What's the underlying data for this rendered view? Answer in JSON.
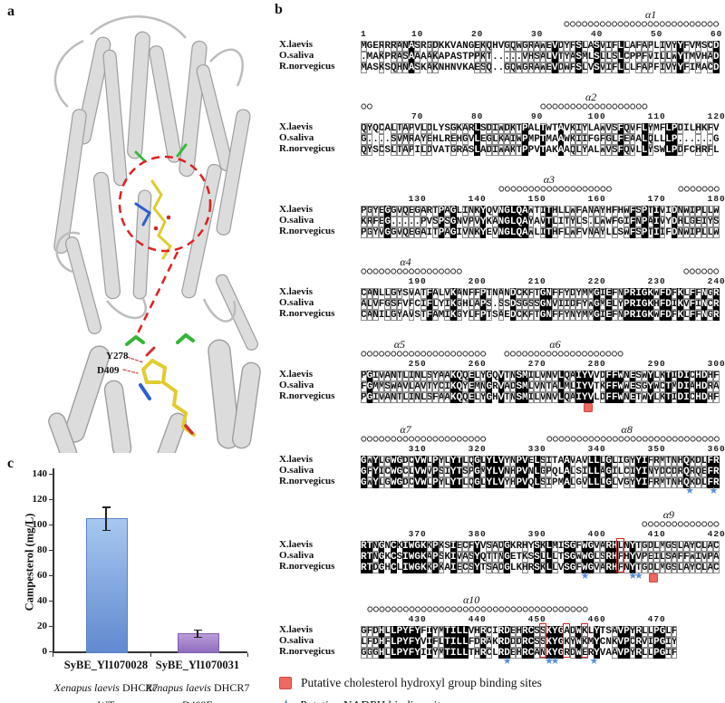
{
  "figure": {
    "panel_a_label": "a",
    "panel_b_label": "b",
    "panel_c_label": "c"
  },
  "panel_a": {
    "labels": [
      "Y278",
      "D409"
    ],
    "colors": {
      "ribbon": "#dcdcdc",
      "ribbon_edge": "#9e9e9e",
      "ligand": "#e0cc2e",
      "residue": "#38b838",
      "stick_blue": "#2b5fd0",
      "stick_red": "#cc2a2a",
      "dashed": "#e02020"
    }
  },
  "alignment": {
    "species": [
      "X.laevis",
      "O.saliva",
      "R.norvegicus"
    ],
    "colors": {
      "star": "#5b8ed8",
      "red_square": "#ee6a60",
      "red_square_border": "#cf4a42",
      "red_box": "#dd2020"
    },
    "blocks": [
      {
        "start": 1,
        "helices": [
          {
            "label": "α1",
            "from": 35,
            "to": 60,
            "at": 49
          }
        ],
        "rows": [
          "MGERRRANASRGDKKVANGEKQHVGQWGRAWEVDYFSLASVIFLLAFAPLIVYYFVMSCD",
          ".MAKPRASAAAAKAPASTPPKT.....VHSALVTYASMLSLLSLCPPFVILLWYTMVHAD",
          "MASKSQHNASKAKNHNVKAESQ..GQWGRAWEVDWFSLVSVIFLLLFAPFIVYYFIMACD"
        ],
        "markers": [],
        "red_boxes": []
      },
      {
        "start": 61,
        "helices": [
          {
            "from": 61,
            "to": 61.9
          },
          {
            "label": "α2",
            "from": 91,
            "to": 108,
            "at": 99
          }
        ],
        "rows": [
          "QYQCALTAPVLDLYSGKARLSDIWDKTPALTWTAVKIYLAWVSFQVFLYMFLPDILHKFV",
          "G....SVMRAYEHLREHGVLEGLKAIWPMPTMAAWKIIFGFGLFEAALQLLLP......G",
          "QYSCSLTAPILDVATGRASLADIWAKTPPVTAKAAQLYALWVSFQVLLYSWLPDFCHRFL"
        ],
        "markers": [],
        "red_boxes": []
      },
      {
        "start": 121,
        "helices": [
          {
            "label": "α3",
            "from": 144,
            "to": 162,
            "at": 152
          },
          {
            "from": 174,
            "to": 180
          }
        ],
        "rows": [
          "PGYEGGVQEGARTPAGLINKYQVNGLQAWTITHLLWFANAYHFHWFSPTIVIDNWIPLLW",
          "KRFEG.....PVSPSGNVPVYKANGLQAYAVTLITYLS.LWWFGIFNPAIVYDHLGEIYS",
          "PGYVGGVQEGAITPAGIVNKYEVNGLQAWLITHFLWFVNAYLLSWFSPTIIFDNWIPLLW"
        ],
        "markers": [],
        "red_boxes": []
      },
      {
        "start": 181,
        "helices": [
          {
            "label": "α4",
            "from": 181,
            "to": 197,
            "at": 188
          },
          {
            "from": 235,
            "to": 240
          }
        ],
        "rows": [
          "CANLLGYSVATFALVKANFFPTNANDCKFTGNFFYDYMMGIEFNPRIGKWFDFKLFFNGR",
          "ALVFGSFVFCIFLYIKGHLAPS.SSDSGSSGNVIIDFYWGMELYPRIGKHFDIKVFINCR",
          "CANILGYAVSTFAMIKGYLFPTSAEDCKFTGNFFYNYMMGIEFNPRIGKWFDFKLFFNGR"
        ],
        "markers": [],
        "red_boxes": []
      },
      {
        "start": 241,
        "helices": [
          {
            "label": "α5",
            "from": 241,
            "to": 261,
            "at": 247
          },
          {
            "label": "α6",
            "from": 265,
            "to": 284,
            "at": 273
          }
        ],
        "rows": [
          "PGIVANTLINLSYAAKQQELYGQVTNSMILVNVLQAIYVVDFFWNESWYLKTIDICHDHF",
          "FGMMSWAVLAVTYCIKQYEMNGRVADSMLVNTALMLIYVTKFFWWESGYWCTMDIAHDRA",
          "PGIVANTLINLSFAAKQQELYGHVTNSMILVNVLQAIYVLDFFWNETWYLKTIDICHDHF"
        ],
        "markers": [
          {
            "type": "red-square",
            "at": 278.5
          }
        ],
        "red_boxes": []
      },
      {
        "start": 301,
        "helices": [
          {
            "label": "α7",
            "from": 301,
            "to": 321,
            "at": 308
          },
          {
            "label": "α8",
            "from": 332,
            "to": 360,
            "at": 345
          }
        ],
        "rows": [
          "GWYLGWGDCVWLPYLYTLQGLYLVYNPVELSITAAVAVLLLGLIGYYIFRMTNHQKDLFR",
          "GFYICWGCLVWVPSIYTSPGMYLVNHPVNLGPQLALSILLAGILCIYINYDCDRQRQEFR",
          "GWYLGWGDCVWLPYLYTLQGLYLVYHPVQLSIPMALGVLLLGLVGYYIFRMTNHQKDLFR"
        ],
        "markers": [
          {
            "type": "blue-star",
            "at": 355.5
          },
          {
            "type": "blue-star",
            "at": 359.5
          }
        ],
        "red_boxes": []
      },
      {
        "start": 361,
        "helices": [
          {
            "label": "α9",
            "from": 408,
            "to": 420,
            "at": 412
          }
        ],
        "rows": [
          "RTNGNCKIWGKKPKSIECFYVSADGKRHYSKLMISGFWGVARHLNYTGDLMGSLAYCLAC",
          "RTNGKCSIWGKAPSKIVASYQTTNGETKSSLLLTSGWWGLSRHFHYVPEILSAFFWIVPA",
          "RTDGHCLIWGKKPKAIECSYTSADGLKHRSKLLVSGFWGVARHFNYTGDLMGSLAYCLAC"
        ],
        "markers": [
          {
            "type": "blue-star",
            "at": 398
          },
          {
            "type": "blue-star",
            "at": 406
          },
          {
            "type": "blue-star",
            "at": 407
          },
          {
            "type": "red-square",
            "at": 409.5
          }
        ],
        "red_boxes": [
          404
        ]
      },
      {
        "start": 421,
        "helices": [
          {
            "label": "α10",
            "from": 422,
            "to": 458,
            "at": 439
          }
        ],
        "rows": [
          "GFDHLLPYFYFIYMTILLVHRCIRDEHRCSSKYGADWKLYTSAVPYRLLPGLF",
          "LFDHFLPYFYVIFLTILLFDRAKRDDDRCSSKYGKYWKMYCNKVPCRVIPGIY",
          "GGGHLLPYFYIIYMTILLTHRCLRDEHRCANKYGRDWERYVAAVPYRLLPGIF"
        ],
        "markers": [
          {
            "type": "blue-star",
            "at": 445
          },
          {
            "type": "blue-star",
            "at": 452
          },
          {
            "type": "blue-star",
            "at": 453
          },
          {
            "type": "blue-star",
            "at": 459.5
          }
        ],
        "red_boxes": [
          451,
          455,
          458
        ]
      }
    ],
    "legend": [
      {
        "marker": "red-square",
        "label": "Putative cholesterol hydroxyl group binding sites"
      },
      {
        "marker": "blue-star",
        "label": "Putative NADPH binding sites"
      }
    ]
  },
  "chart_data": {
    "type": "bar",
    "title": "",
    "xlabel": "",
    "ylabel": "Campesterol  (mg/L)",
    "ylim": [
      0,
      140
    ],
    "yticks": [
      0,
      20,
      40,
      60,
      80,
      100,
      120,
      140
    ],
    "categories": [
      "SyBE_Yl1070028",
      "SyBE_Yl1070031"
    ],
    "sublabels": [
      {
        "italic": "Xenapus laevis",
        "plain": " DHCR7",
        "line2": "WT"
      },
      {
        "italic": "Xenapus laevis",
        "plain": " DHCR7",
        "line2": "D409E"
      }
    ],
    "values": [
      105,
      14.5
    ],
    "errors": [
      9,
      3
    ],
    "bar_colors": [
      {
        "top": "#a6c8f0",
        "bottom": "#6289d0",
        "border": "#5b82c8"
      },
      {
        "top": "#b99cda",
        "bottom": "#8f6cbe",
        "border": "#7d5fae"
      }
    ],
    "legend_position": "none",
    "grid": false
  }
}
